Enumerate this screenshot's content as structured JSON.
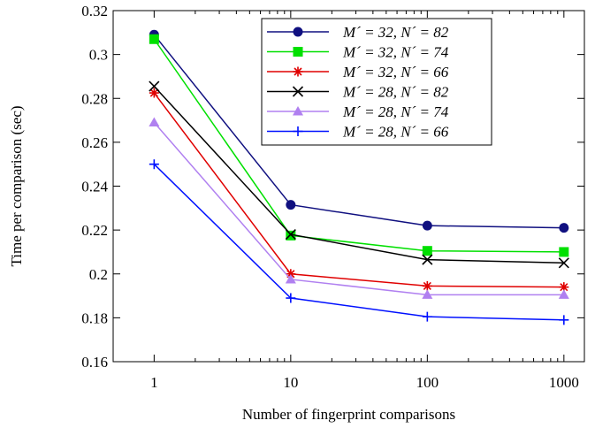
{
  "chart_data": {
    "type": "line",
    "xlabel": "Number of fingerprint comparisons",
    "ylabel": "Time per comparison (sec)",
    "x_scale": "log",
    "categories": [
      "1",
      "10",
      "100",
      "1000"
    ],
    "x": [
      1,
      10,
      100,
      1000
    ],
    "ylim": [
      0.16,
      0.32
    ],
    "yticks": [
      "0.16",
      "0.18",
      "0.2",
      "0.22",
      "0.24",
      "0.26",
      "0.28",
      "0.3",
      "0.32"
    ],
    "grid": false,
    "legend_position": "top-right",
    "series": [
      {
        "name": "M´ = 32, N´ = 82",
        "color": "#101080",
        "marker": "circle",
        "values": [
          0.309,
          0.2315,
          0.222,
          0.221
        ]
      },
      {
        "name": "M´ = 32, N´ = 74",
        "color": "#00e000",
        "marker": "square",
        "values": [
          0.307,
          0.2175,
          0.2105,
          0.21
        ]
      },
      {
        "name": "M´ = 32, N´ = 66",
        "color": "#e00000",
        "marker": "asterisk",
        "values": [
          0.2825,
          0.2,
          0.1945,
          0.194
        ]
      },
      {
        "name": "M´ = 28, N´ = 82",
        "color": "#000000",
        "marker": "x",
        "values": [
          0.2855,
          0.218,
          0.2065,
          0.205
        ]
      },
      {
        "name": "M´ = 28, N´ = 74",
        "color": "#b080f0",
        "marker": "triangle",
        "values": [
          0.269,
          0.1975,
          0.1905,
          0.1905
        ]
      },
      {
        "name": "M´ = 28, N´ = 66",
        "color": "#0010ff",
        "marker": "plus",
        "values": [
          0.25,
          0.189,
          0.1805,
          0.179
        ]
      }
    ]
  }
}
